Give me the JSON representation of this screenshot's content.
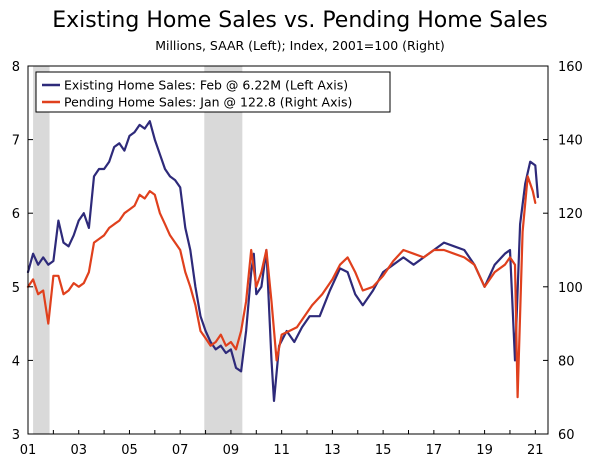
{
  "chart_data": {
    "type": "line",
    "title": "Existing Home Sales vs. Pending Home Sales",
    "subtitle": "Millions, SAAR (Left); Index, 2001=100 (Right)",
    "xlabel": "",
    "ylabel_left": "",
    "ylabel_right": "",
    "x_tick_labels": [
      "01",
      "03",
      "05",
      "07",
      "09",
      "11",
      "13",
      "15",
      "17",
      "19",
      "21"
    ],
    "x_tick_years": [
      2001,
      2003,
      2005,
      2007,
      2009,
      2011,
      2013,
      2015,
      2017,
      2019,
      2021
    ],
    "xlim": [
      2001.0,
      2021.5
    ],
    "ylim_left": [
      3,
      8
    ],
    "ylim_right": [
      60,
      160
    ],
    "y_ticks_left": [
      "3",
      "4",
      "5",
      "6",
      "7",
      "8"
    ],
    "y_ticks_right": [
      "60",
      "80",
      "100",
      "120",
      "140",
      "160"
    ],
    "grid": false,
    "legend_position": "top-left",
    "recessions": [
      {
        "start": 2001.2,
        "end": 2001.85
      },
      {
        "start": 2007.95,
        "end": 2009.45
      }
    ],
    "series": [
      {
        "name": "Existing Home Sales: Feb @ 6.22M (Left Axis)",
        "axis": "left",
        "color": "#2e2a7a",
        "x": [
          2001.0,
          2001.2,
          2001.4,
          2001.6,
          2001.8,
          2002.0,
          2002.2,
          2002.4,
          2002.6,
          2002.8,
          2003.0,
          2003.2,
          2003.4,
          2003.6,
          2003.8,
          2004.0,
          2004.2,
          2004.4,
          2004.6,
          2004.8,
          2005.0,
          2005.2,
          2005.4,
          2005.6,
          2005.8,
          2006.0,
          2006.2,
          2006.4,
          2006.6,
          2006.8,
          2007.0,
          2007.2,
          2007.4,
          2007.6,
          2007.8,
          2008.0,
          2008.2,
          2008.4,
          2008.6,
          2008.8,
          2009.0,
          2009.2,
          2009.4,
          2009.6,
          2009.8,
          2009.9,
          2010.0,
          2010.2,
          2010.4,
          2010.6,
          2010.7,
          2010.9,
          2011.2,
          2011.5,
          2011.8,
          2012.1,
          2012.5,
          2012.9,
          2013.3,
          2013.6,
          2013.9,
          2014.2,
          2014.6,
          2015.0,
          2015.4,
          2015.8,
          2016.2,
          2016.6,
          2017.0,
          2017.4,
          2017.8,
          2018.2,
          2018.6,
          2019.0,
          2019.4,
          2019.8,
          2020.0,
          2020.2,
          2020.4,
          2020.6,
          2020.8,
          2021.0,
          2021.1
        ],
        "y": [
          5.2,
          5.45,
          5.3,
          5.4,
          5.3,
          5.35,
          5.9,
          5.6,
          5.55,
          5.7,
          5.9,
          6.0,
          5.8,
          6.5,
          6.6,
          6.6,
          6.7,
          6.9,
          6.95,
          6.85,
          7.05,
          7.1,
          7.2,
          7.15,
          7.25,
          7.0,
          6.8,
          6.6,
          6.5,
          6.45,
          6.35,
          5.8,
          5.5,
          5.0,
          4.6,
          4.4,
          4.25,
          4.15,
          4.2,
          4.1,
          4.15,
          3.9,
          3.85,
          4.4,
          5.2,
          5.45,
          4.9,
          5.0,
          5.5,
          4.0,
          3.45,
          4.2,
          4.4,
          4.25,
          4.45,
          4.6,
          4.6,
          4.95,
          5.25,
          5.2,
          4.9,
          4.75,
          4.95,
          5.2,
          5.3,
          5.4,
          5.3,
          5.4,
          5.5,
          5.6,
          5.55,
          5.5,
          5.3,
          5.0,
          5.3,
          5.45,
          5.5,
          4.0,
          5.85,
          6.4,
          6.7,
          6.65,
          6.22
        ]
      },
      {
        "name": "Pending Home Sales: Jan @ 122.8 (Right Axis)",
        "axis": "right",
        "color": "#e0401d",
        "x": [
          2001.0,
          2001.2,
          2001.4,
          2001.6,
          2001.8,
          2002.0,
          2002.2,
          2002.4,
          2002.6,
          2002.8,
          2003.0,
          2003.2,
          2003.4,
          2003.6,
          2003.8,
          2004.0,
          2004.2,
          2004.4,
          2004.6,
          2004.8,
          2005.0,
          2005.2,
          2005.4,
          2005.6,
          2005.8,
          2006.0,
          2006.2,
          2006.4,
          2006.6,
          2006.8,
          2007.0,
          2007.2,
          2007.4,
          2007.6,
          2007.8,
          2008.0,
          2008.2,
          2008.4,
          2008.6,
          2008.8,
          2009.0,
          2009.2,
          2009.4,
          2009.6,
          2009.8,
          2010.0,
          2010.2,
          2010.4,
          2010.6,
          2010.8,
          2011.0,
          2011.3,
          2011.6,
          2011.9,
          2012.2,
          2012.6,
          2013.0,
          2013.3,
          2013.6,
          2013.9,
          2014.2,
          2014.6,
          2015.0,
          2015.4,
          2015.8,
          2016.2,
          2016.6,
          2017.0,
          2017.4,
          2017.8,
          2018.2,
          2018.6,
          2019.0,
          2019.4,
          2019.8,
          2020.0,
          2020.2,
          2020.3,
          2020.5,
          2020.7,
          2020.9,
          2021.0
        ],
        "y": [
          100,
          102,
          98,
          99,
          90,
          103,
          103,
          98,
          99,
          101,
          100,
          101,
          104,
          112,
          113,
          114,
          116,
          117,
          118,
          120,
          121,
          122,
          125,
          124,
          126,
          125,
          120,
          117,
          114,
          112,
          110,
          104,
          100,
          95,
          88,
          86,
          84,
          85,
          87,
          84,
          85,
          83,
          88,
          96,
          110,
          100,
          104,
          110,
          96,
          80,
          87,
          88,
          89,
          92,
          95,
          98,
          102,
          106,
          108,
          104,
          99,
          100,
          103,
          107,
          110,
          109,
          108,
          110,
          110,
          109,
          108,
          106,
          100,
          104,
          106,
          108,
          106,
          70,
          115,
          130,
          126,
          122.8
        ]
      }
    ]
  }
}
